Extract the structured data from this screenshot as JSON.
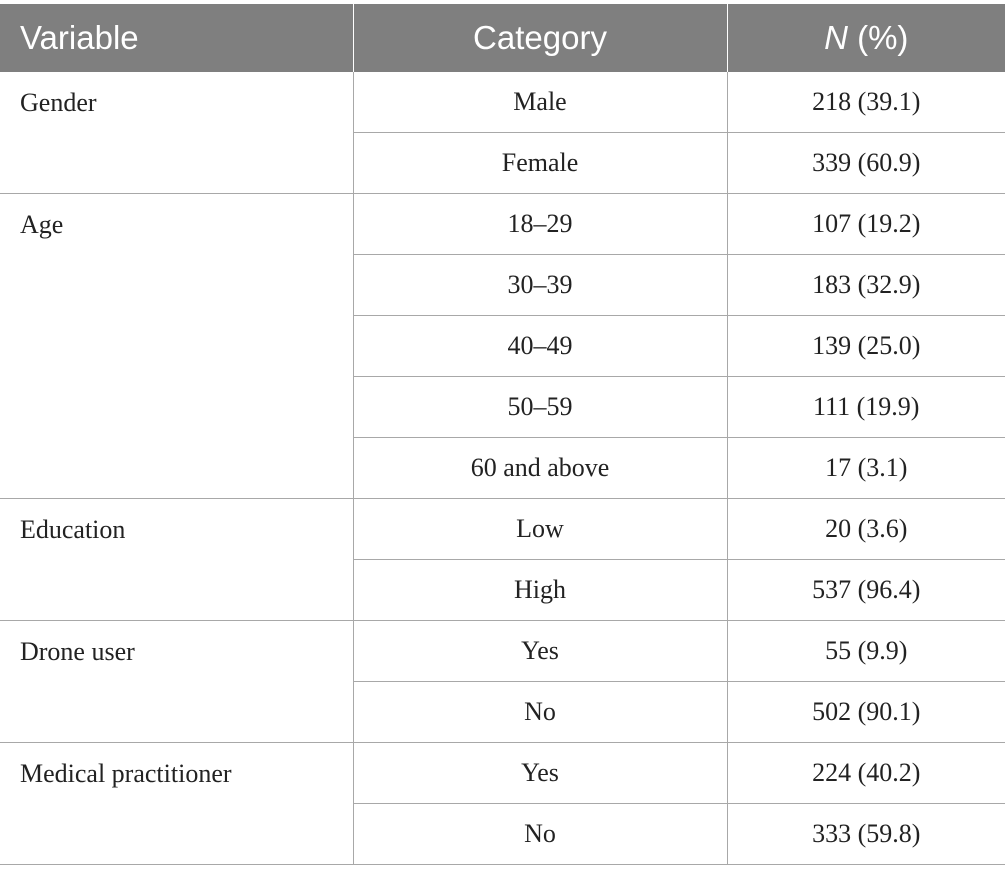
{
  "table": {
    "headers": {
      "variable": "Variable",
      "category": "Category",
      "n_italic": "N",
      "n_rest": " (%)"
    },
    "groups": [
      {
        "variable": "Gender",
        "rows": [
          {
            "category": "Male",
            "value": "218 (39.1)"
          },
          {
            "category": "Female",
            "value": "339 (60.9)"
          }
        ]
      },
      {
        "variable": "Age",
        "rows": [
          {
            "category": "18–29",
            "value": "107 (19.2)"
          },
          {
            "category": "30–39",
            "value": "183 (32.9)"
          },
          {
            "category": "40–49",
            "value": "139 (25.0)"
          },
          {
            "category": "50–59",
            "value": "111 (19.9)"
          },
          {
            "category": "60 and above",
            "value": "17 (3.1)"
          }
        ]
      },
      {
        "variable": "Education",
        "rows": [
          {
            "category": "Low",
            "value": "20 (3.6)"
          },
          {
            "category": "High",
            "value": "537 (96.4)"
          }
        ]
      },
      {
        "variable": "Drone user",
        "rows": [
          {
            "category": "Yes",
            "value": "55 (9.9)"
          },
          {
            "category": "No",
            "value": "502 (90.1)"
          }
        ]
      },
      {
        "variable": "Medical practitioner",
        "rows": [
          {
            "category": "Yes",
            "value": "224 (40.2)"
          },
          {
            "category": "No",
            "value": "333 (59.8)"
          }
        ]
      }
    ]
  }
}
